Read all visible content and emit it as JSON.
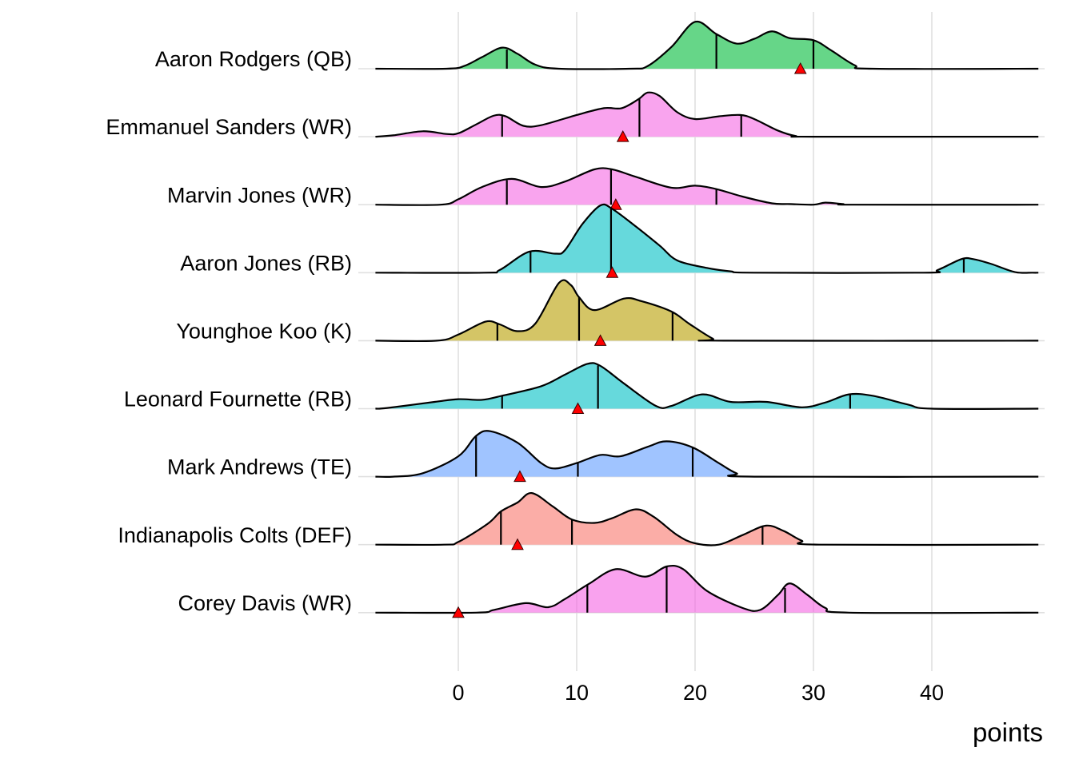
{
  "chart_data": {
    "type": "ridgeline",
    "title": "",
    "xlabel": "points",
    "ylabel": "",
    "xlim": [
      -7,
      49
    ],
    "x_ticks": [
      0,
      10,
      20,
      30,
      40
    ],
    "x_tick_labels": [
      "0",
      "10",
      "20",
      "30",
      "40"
    ],
    "grid": true,
    "legend": "none",
    "marker_color": "#ff0000",
    "marker_meaning": "projected points (red triangle)",
    "quantile_lines": [
      0.25,
      0.5,
      0.75
    ],
    "series": [
      {
        "name": "Aaron Rodgers (QB)",
        "color": "#00BA38",
        "fill": "#66D688",
        "density": [
          [
            -7,
            0
          ],
          [
            -1,
            0
          ],
          [
            0.5,
            0.04
          ],
          [
            2,
            0.17
          ],
          [
            3.7,
            0.31
          ],
          [
            5,
            0.22
          ],
          [
            6.5,
            0.06
          ],
          [
            8.5,
            0
          ],
          [
            14.5,
            0
          ],
          [
            16,
            0.04
          ],
          [
            18,
            0.32
          ],
          [
            20,
            0.69
          ],
          [
            21.8,
            0.51
          ],
          [
            23.5,
            0.37
          ],
          [
            25,
            0.44
          ],
          [
            26.5,
            0.55
          ],
          [
            28,
            0.45
          ],
          [
            30,
            0.42
          ],
          [
            31.5,
            0.27
          ],
          [
            33.5,
            0.05
          ],
          [
            35,
            0
          ],
          [
            49,
            0
          ]
        ],
        "quantiles": [
          4.1,
          21.8,
          30.0
        ],
        "marker": 28.9
      },
      {
        "name": "Emmanuel Sanders (WR)",
        "color": "#F564E3",
        "fill": "#F9A4EE",
        "density": [
          [
            -7,
            0
          ],
          [
            -5.5,
            0.02
          ],
          [
            -3,
            0.08
          ],
          [
            -1,
            0.04
          ],
          [
            0,
            0.05
          ],
          [
            1.5,
            0.18
          ],
          [
            3,
            0.31
          ],
          [
            4,
            0.3
          ],
          [
            5.5,
            0.16
          ],
          [
            7,
            0.17
          ],
          [
            10,
            0.32
          ],
          [
            12.3,
            0.42
          ],
          [
            13.8,
            0.42
          ],
          [
            15.2,
            0.55
          ],
          [
            16,
            0.65
          ],
          [
            17,
            0.6
          ],
          [
            18.5,
            0.36
          ],
          [
            20,
            0.26
          ],
          [
            22,
            0.3
          ],
          [
            23.8,
            0.32
          ],
          [
            25,
            0.26
          ],
          [
            27,
            0.09
          ],
          [
            28.5,
            0.01
          ],
          [
            30,
            0
          ],
          [
            49,
            0
          ]
        ],
        "quantiles": [
          3.7,
          15.3,
          23.9
        ],
        "marker": 13.9
      },
      {
        "name": "Marvin Jones (WR)",
        "color": "#F564E3",
        "fill": "#F9A4EE",
        "density": [
          [
            -7,
            0
          ],
          [
            -1.5,
            0
          ],
          [
            0,
            0.08
          ],
          [
            2,
            0.26
          ],
          [
            4.5,
            0.38
          ],
          [
            7,
            0.26
          ],
          [
            9,
            0.34
          ],
          [
            11.5,
            0.52
          ],
          [
            13,
            0.52
          ],
          [
            15,
            0.41
          ],
          [
            18,
            0.25
          ],
          [
            20,
            0.28
          ],
          [
            21.8,
            0.23
          ],
          [
            24,
            0.12
          ],
          [
            26.5,
            0.02
          ],
          [
            28,
            0.01
          ],
          [
            30,
            0
          ],
          [
            31,
            0.03
          ],
          [
            32.5,
            0.01
          ],
          [
            33.5,
            0
          ],
          [
            49,
            0
          ]
        ],
        "quantiles": [
          4.1,
          12.9,
          21.8
        ],
        "marker": 13.3
      },
      {
        "name": "Aaron Jones (RB)",
        "color": "#00BFC4",
        "fill": "#66D9DC",
        "density": [
          [
            -7,
            0
          ],
          [
            2.2,
            0
          ],
          [
            3.5,
            0.04
          ],
          [
            6,
            0.31
          ],
          [
            8.2,
            0.28
          ],
          [
            9,
            0.33
          ],
          [
            10.5,
            0.72
          ],
          [
            12,
            0.99
          ],
          [
            13,
            0.94
          ],
          [
            15,
            0.68
          ],
          [
            17,
            0.4
          ],
          [
            18.5,
            0.18
          ],
          [
            21,
            0.07
          ],
          [
            23,
            0.02
          ],
          [
            25,
            0
          ],
          [
            39.3,
            0
          ],
          [
            40.5,
            0.04
          ],
          [
            42.5,
            0.2
          ],
          [
            43.5,
            0.2
          ],
          [
            45,
            0.13
          ],
          [
            47,
            0.01
          ],
          [
            48.5,
            0
          ],
          [
            49,
            0
          ]
        ],
        "quantiles": [
          6.1,
          12.9,
          42.7
        ],
        "marker": 13.0
      },
      {
        "name": "Younghoe Koo (K)",
        "color": "#B79F00",
        "fill": "#D4C566",
        "density": [
          [
            -7,
            0
          ],
          [
            -1.8,
            0
          ],
          [
            0,
            0.09
          ],
          [
            2.3,
            0.28
          ],
          [
            3.5,
            0.24
          ],
          [
            5,
            0.14
          ],
          [
            6.5,
            0.25
          ],
          [
            8.5,
            0.85
          ],
          [
            9.5,
            0.82
          ],
          [
            10.2,
            0.64
          ],
          [
            11.5,
            0.45
          ],
          [
            14,
            0.62
          ],
          [
            15.5,
            0.58
          ],
          [
            18,
            0.43
          ],
          [
            19.5,
            0.25
          ],
          [
            21.5,
            0.03
          ],
          [
            22.5,
            0
          ],
          [
            49,
            0
          ]
        ],
        "quantiles": [
          3.3,
          10.2,
          18.1
        ],
        "marker": 12.0
      },
      {
        "name": "Leonard Fournette (RB)",
        "color": "#00BFC4",
        "fill": "#66D9DC",
        "density": [
          [
            -7,
            0
          ],
          [
            -6,
            0.01
          ],
          [
            -2,
            0.1
          ],
          [
            0,
            0.14
          ],
          [
            2,
            0.13
          ],
          [
            3.7,
            0.19
          ],
          [
            7,
            0.33
          ],
          [
            9,
            0.5
          ],
          [
            10.9,
            0.66
          ],
          [
            12,
            0.63
          ],
          [
            14,
            0.37
          ],
          [
            16.7,
            0.04
          ],
          [
            18,
            0.04
          ],
          [
            20.6,
            0.21
          ],
          [
            23,
            0.1
          ],
          [
            26,
            0.1
          ],
          [
            29,
            0.02
          ],
          [
            31,
            0.09
          ],
          [
            33,
            0.21
          ],
          [
            35,
            0.19
          ],
          [
            38,
            0.06
          ],
          [
            40,
            0
          ],
          [
            49,
            0
          ]
        ],
        "quantiles": [
          3.7,
          11.8,
          33.1
        ],
        "marker": 10.1
      },
      {
        "name": "Mark Andrews (TE)",
        "color": "#619CFF",
        "fill": "#A0C4FF",
        "density": [
          [
            -7,
            0
          ],
          [
            -5.5,
            0
          ],
          [
            -3,
            0.05
          ],
          [
            0,
            0.3
          ],
          [
            1.5,
            0.6
          ],
          [
            2.7,
            0.67
          ],
          [
            5,
            0.5
          ],
          [
            7,
            0.2
          ],
          [
            8.2,
            0.12
          ],
          [
            10,
            0.2
          ],
          [
            12,
            0.32
          ],
          [
            13.7,
            0.3
          ],
          [
            16,
            0.44
          ],
          [
            17.6,
            0.52
          ],
          [
            19.8,
            0.43
          ],
          [
            22,
            0.2
          ],
          [
            23.5,
            0.05
          ],
          [
            25,
            0
          ],
          [
            49,
            0
          ]
        ],
        "quantiles": [
          1.5,
          10.1,
          19.8
        ],
        "marker": 5.2
      },
      {
        "name": "Indianapolis Colts (DEF)",
        "color": "#F8766D",
        "fill": "#FBADA7",
        "density": [
          [
            -7,
            0
          ],
          [
            -1.2,
            0
          ],
          [
            0,
            0.04
          ],
          [
            2.5,
            0.31
          ],
          [
            3.6,
            0.49
          ],
          [
            5,
            0.62
          ],
          [
            6.2,
            0.76
          ],
          [
            8,
            0.56
          ],
          [
            9.6,
            0.37
          ],
          [
            11.5,
            0.32
          ],
          [
            13,
            0.39
          ],
          [
            15,
            0.52
          ],
          [
            16.5,
            0.41
          ],
          [
            18.5,
            0.14
          ],
          [
            20,
            0.02
          ],
          [
            22,
            0
          ],
          [
            24,
            0.14
          ],
          [
            26,
            0.28
          ],
          [
            27.5,
            0.2
          ],
          [
            29,
            0.06
          ],
          [
            30.5,
            0
          ],
          [
            49,
            0
          ]
        ],
        "quantiles": [
          3.6,
          9.6,
          25.7
        ],
        "marker": 5.0
      },
      {
        "name": "Corey Davis (WR)",
        "color": "#F564E3",
        "fill": "#F564E3",
        "density": [
          [
            -7,
            0
          ],
          [
            1.5,
            0
          ],
          [
            3,
            0.04
          ],
          [
            5.7,
            0.14
          ],
          [
            7.6,
            0.08
          ],
          [
            9,
            0.2
          ],
          [
            11,
            0.42
          ],
          [
            13.3,
            0.64
          ],
          [
            15.8,
            0.53
          ],
          [
            17.6,
            0.68
          ],
          [
            19,
            0.64
          ],
          [
            21,
            0.32
          ],
          [
            24,
            0.07
          ],
          [
            25.5,
            0.04
          ],
          [
            27,
            0.26
          ],
          [
            28,
            0.43
          ],
          [
            29.5,
            0.26
          ],
          [
            31,
            0.07
          ],
          [
            33,
            0
          ],
          [
            49,
            0
          ]
        ],
        "quantiles": [
          10.9,
          17.6,
          27.6
        ],
        "marker": 0.0
      }
    ]
  }
}
